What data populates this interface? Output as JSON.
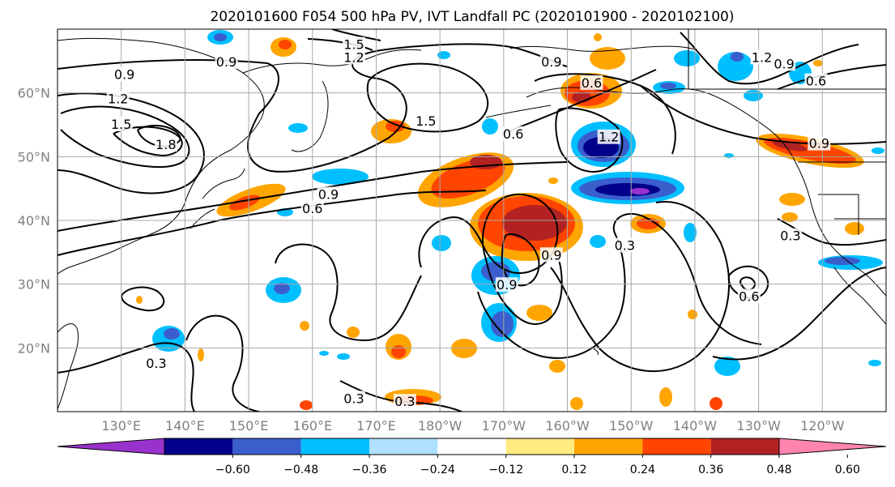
{
  "title": "2020101600 F054 500 hPa PV, IVT Landfall PC (2020101900 - 2020102100)",
  "map": {
    "lon_range": [
      120,
      250
    ],
    "lat_range": [
      10,
      70
    ],
    "lon_ticks": [
      {
        "lon": 130,
        "label": "130°E"
      },
      {
        "lon": 140,
        "label": "140°E"
      },
      {
        "lon": 150,
        "label": "150°E"
      },
      {
        "lon": 160,
        "label": "160°E"
      },
      {
        "lon": 170,
        "label": "170°E"
      },
      {
        "lon": 180,
        "label": "180°W"
      },
      {
        "lon": 190,
        "label": "170°W"
      },
      {
        "lon": 200,
        "label": "160°W"
      },
      {
        "lon": 210,
        "label": "150°W"
      },
      {
        "lon": 220,
        "label": "140°W"
      },
      {
        "lon": 230,
        "label": "130°W"
      },
      {
        "lon": 240,
        "label": "120°W"
      }
    ],
    "lat_ticks": [
      {
        "lat": 20,
        "label": "20°N"
      },
      {
        "lat": 30,
        "label": "30°N"
      },
      {
        "lat": 40,
        "label": "40°N"
      },
      {
        "lat": 50,
        "label": "50°N"
      },
      {
        "lat": 60,
        "label": "60°N"
      }
    ],
    "grid_lons": [
      130,
      140,
      150,
      160,
      170,
      180,
      190,
      200,
      210,
      220,
      230,
      240
    ],
    "grid_lats": [
      20,
      30,
      40,
      50,
      60
    ],
    "pv_contour_labels": [
      {
        "text": "0.9",
        "lon": 146.5,
        "lat": 64.8
      },
      {
        "text": "1.5",
        "lon": 166.5,
        "lat": 67.5
      },
      {
        "text": "1.2",
        "lon": 166.5,
        "lat": 65.5
      },
      {
        "text": "0.9",
        "lon": 130.5,
        "lat": 62.8
      },
      {
        "text": "1.2",
        "lon": 129.5,
        "lat": 59.0
      },
      {
        "text": "1.5",
        "lon": 130.0,
        "lat": 55.0
      },
      {
        "text": "1.8",
        "lon": 137.0,
        "lat": 51.8
      },
      {
        "text": "1.5",
        "lon": 177.8,
        "lat": 55.5
      },
      {
        "text": "0.9",
        "lon": 162.5,
        "lat": 44.0
      },
      {
        "text": "0.6",
        "lon": 160.0,
        "lat": 41.8
      },
      {
        "text": "0.9",
        "lon": 197.5,
        "lat": 64.8
      },
      {
        "text": "0.6",
        "lon": 203.8,
        "lat": 61.5
      },
      {
        "text": "1.2",
        "lon": 206.5,
        "lat": 53.0
      },
      {
        "text": "0.6",
        "lon": 191.5,
        "lat": 53.5
      },
      {
        "text": "1.2",
        "lon": 230.5,
        "lat": 65.5
      },
      {
        "text": "0.9",
        "lon": 234.0,
        "lat": 64.5
      },
      {
        "text": "0.6",
        "lon": 239.0,
        "lat": 61.8
      },
      {
        "text": "0.9",
        "lon": 239.5,
        "lat": 52.0
      },
      {
        "text": "0.3",
        "lon": 209.0,
        "lat": 36.0
      },
      {
        "text": "0.9",
        "lon": 197.5,
        "lat": 34.5
      },
      {
        "text": "0.9",
        "lon": 190.5,
        "lat": 29.8
      },
      {
        "text": "0.3",
        "lon": 235.0,
        "lat": 37.5
      },
      {
        "text": "0.6",
        "lon": 228.5,
        "lat": 28.0
      },
      {
        "text": "0.3",
        "lon": 135.5,
        "lat": 17.5
      },
      {
        "text": "0.3",
        "lon": 166.5,
        "lat": 12.0
      },
      {
        "text": "0.3",
        "lon": 174.5,
        "lat": 11.5
      }
    ]
  },
  "colorbar": {
    "colors": [
      "#9932CC",
      "#00008B",
      "#3A5ECC",
      "#00BFFF",
      "#B0E0FF",
      "#FFFFFF",
      "#FFEB80",
      "#FFA500",
      "#FF4500",
      "#B22222",
      "#FF85B0"
    ],
    "labels": [
      "−0.60",
      "−0.48",
      "−0.36",
      "−0.24",
      "−0.12",
      "0.12",
      "0.24",
      "0.36",
      "0.48",
      "0.60"
    ]
  }
}
